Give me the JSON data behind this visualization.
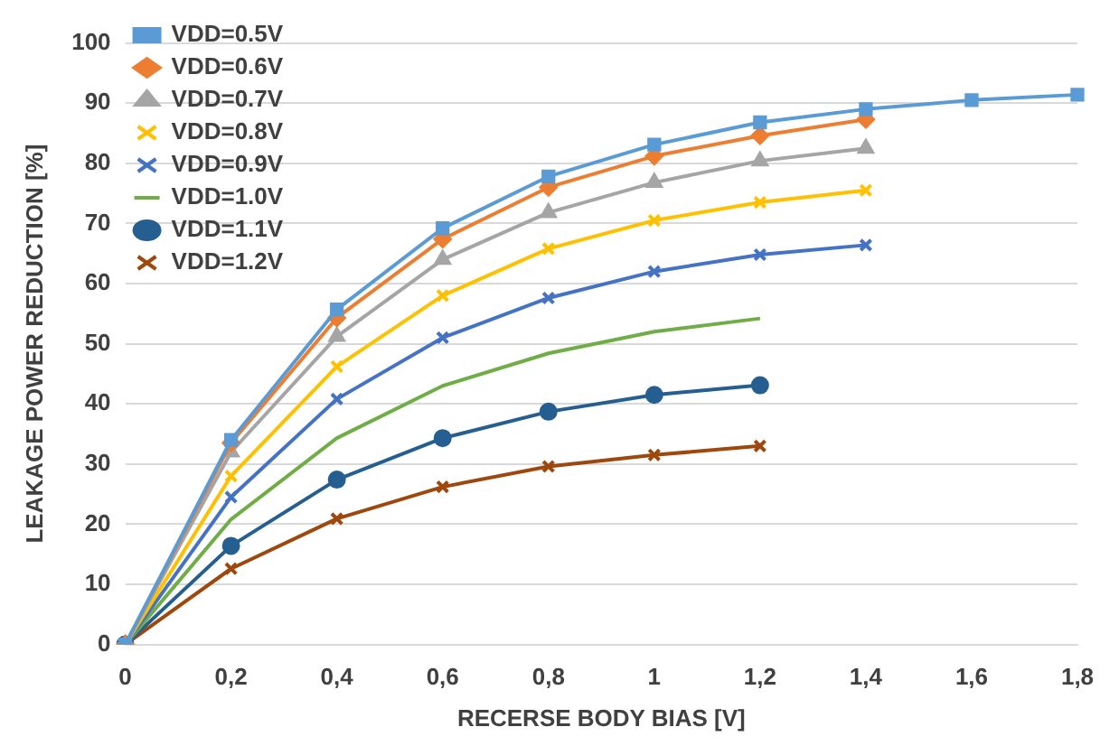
{
  "chart_data": {
    "type": "line",
    "xlabel": "RECERSE BODY BIAS [V]",
    "ylabel": "LEAKAGE POWER REDUCTION [%]",
    "categories": [
      "0",
      "0,2",
      "0,4",
      "0,6",
      "0,8",
      "1",
      "1,2",
      "1,4",
      "1,6",
      "1,8"
    ],
    "ylim": [
      0,
      100
    ],
    "yticks": [
      0,
      10,
      20,
      30,
      40,
      50,
      60,
      70,
      80,
      90,
      100
    ],
    "grid": "y",
    "legend": "top left",
    "series": [
      {
        "name": "VDD=0.5V",
        "color": "#5b9bd5",
        "marker": "square",
        "values": [
          0,
          34,
          55.7,
          69.2,
          77.8,
          83.1,
          86.8,
          89,
          90.5,
          91.4
        ]
      },
      {
        "name": "VDD=0.6V",
        "color": "#ed7d31",
        "marker": "diamond",
        "values": [
          0,
          33.5,
          54.3,
          67.4,
          76,
          81.2,
          84.6,
          87.3,
          null,
          null
        ]
      },
      {
        "name": "VDD=0.7V",
        "color": "#a5a5a5",
        "marker": "triangle",
        "values": [
          0,
          32,
          51.2,
          64,
          71.8,
          76.8,
          80.4,
          82.5,
          null,
          null
        ]
      },
      {
        "name": "VDD=0.8V",
        "color": "#ffc000",
        "marker": "cross",
        "values": [
          0,
          28,
          46.2,
          58,
          65.8,
          70.5,
          73.5,
          75.5,
          null,
          null
        ]
      },
      {
        "name": "VDD=0.9V",
        "color": "#4472c4",
        "marker": "cross",
        "values": [
          0,
          24.5,
          40.8,
          51,
          57.6,
          62,
          64.8,
          66.4,
          null,
          null
        ]
      },
      {
        "name": "VDD=1.0V",
        "color": "#70ad47",
        "marker": "none",
        "values": [
          0,
          20.8,
          34.3,
          43,
          48.4,
          52,
          54.2,
          null,
          null,
          null
        ]
      },
      {
        "name": "VDD=1.1V",
        "color": "#255e91",
        "marker": "circle",
        "values": [
          0,
          16.4,
          27.4,
          34.3,
          38.7,
          41.5,
          43.1,
          null,
          null,
          null
        ]
      },
      {
        "name": "VDD=1.2V",
        "color": "#9e480e",
        "marker": "cross",
        "values": [
          0,
          12.6,
          20.9,
          26.2,
          29.6,
          31.5,
          33,
          null,
          null,
          null
        ]
      }
    ]
  }
}
